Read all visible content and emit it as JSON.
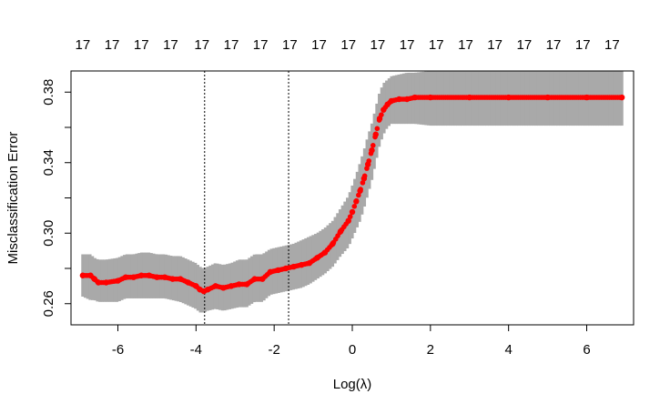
{
  "chart_data": {
    "type": "scatter",
    "xlabel": "Log(λ)",
    "ylabel": "Misclassification Error",
    "xlim": [
      -7.2,
      7.2
    ],
    "ylim": [
      0.248,
      0.392
    ],
    "x_ticks": [
      -6,
      -4,
      -2,
      0,
      2,
      4,
      6
    ],
    "x_tick_labels": [
      "-6",
      "-4",
      "-2",
      "0",
      "2",
      "4",
      "6"
    ],
    "y_ticks": [
      0.26,
      0.28,
      0.3,
      0.32,
      0.34,
      0.36,
      0.38
    ],
    "y_tick_labels": [
      "0.26",
      "",
      "0.30",
      "",
      "0.34",
      "",
      "0.38"
    ],
    "top_axis": {
      "label_positions": [
        -6.9,
        -6.15,
        -5.4,
        -4.65,
        -3.85,
        -3.1,
        -2.35,
        -1.6,
        -0.85,
        -0.1,
        0.65,
        1.4,
        2.15,
        2.9,
        3.65,
        4.4,
        5.15,
        5.9,
        6.65
      ],
      "labels": [
        "17",
        "17",
        "17",
        "17",
        "17",
        "17",
        "17",
        "17",
        "17",
        "17",
        "17",
        "17",
        "17",
        "17",
        "17",
        "17",
        "17",
        "17",
        "17"
      ]
    },
    "vlines": [
      -3.78,
      -1.63
    ],
    "grid": false,
    "series": [
      {
        "color": "#ff0000",
        "band_color": "#a9a9a9",
        "x": [
          -6.9,
          -6.7,
          -6.6,
          -6.5,
          -6.3,
          -6.0,
          -5.8,
          -5.6,
          -5.4,
          -5.2,
          -5.0,
          -4.8,
          -4.6,
          -4.4,
          -4.2,
          -4.0,
          -3.9,
          -3.8,
          -3.7,
          -3.5,
          -3.3,
          -3.1,
          -2.9,
          -2.7,
          -2.5,
          -2.3,
          -2.1,
          -1.9,
          -1.7,
          -1.5,
          -1.3,
          -1.1,
          -0.9,
          -0.7,
          -0.5,
          -0.3,
          -0.1,
          0.0,
          0.1,
          0.2,
          0.3,
          0.4,
          0.5,
          0.6,
          0.7,
          0.8,
          0.9,
          1.0,
          1.2,
          1.4,
          1.6,
          2.0,
          3.0,
          4.0,
          5.0,
          6.0,
          6.9
        ],
        "y": [
          0.276,
          0.276,
          0.274,
          0.272,
          0.272,
          0.273,
          0.275,
          0.275,
          0.276,
          0.276,
          0.275,
          0.275,
          0.274,
          0.274,
          0.272,
          0.27,
          0.268,
          0.267,
          0.268,
          0.27,
          0.269,
          0.27,
          0.271,
          0.271,
          0.274,
          0.274,
          0.278,
          0.279,
          0.28,
          0.281,
          0.282,
          0.283,
          0.286,
          0.289,
          0.294,
          0.301,
          0.307,
          0.312,
          0.318,
          0.324,
          0.331,
          0.339,
          0.347,
          0.356,
          0.365,
          0.37,
          0.373,
          0.375,
          0.376,
          0.376,
          0.377,
          0.377,
          0.377,
          0.377,
          0.377,
          0.377,
          0.377
        ],
        "lower": [
          0.264,
          0.262,
          0.262,
          0.261,
          0.261,
          0.261,
          0.263,
          0.263,
          0.263,
          0.263,
          0.263,
          0.263,
          0.262,
          0.261,
          0.259,
          0.257,
          0.255,
          0.255,
          0.256,
          0.257,
          0.256,
          0.257,
          0.258,
          0.258,
          0.261,
          0.261,
          0.265,
          0.266,
          0.267,
          0.268,
          0.269,
          0.271,
          0.274,
          0.277,
          0.281,
          0.287,
          0.292,
          0.297,
          0.302,
          0.307,
          0.314,
          0.322,
          0.33,
          0.34,
          0.35,
          0.356,
          0.36,
          0.362,
          0.362,
          0.362,
          0.362,
          0.361,
          0.361,
          0.361,
          0.361,
          0.361,
          0.361
        ],
        "upper": [
          0.288,
          0.288,
          0.286,
          0.285,
          0.285,
          0.286,
          0.288,
          0.288,
          0.289,
          0.289,
          0.288,
          0.288,
          0.287,
          0.287,
          0.285,
          0.283,
          0.281,
          0.28,
          0.281,
          0.283,
          0.282,
          0.283,
          0.285,
          0.285,
          0.288,
          0.288,
          0.291,
          0.292,
          0.293,
          0.294,
          0.296,
          0.298,
          0.3,
          0.303,
          0.307,
          0.314,
          0.321,
          0.327,
          0.333,
          0.34,
          0.347,
          0.355,
          0.362,
          0.371,
          0.38,
          0.385,
          0.387,
          0.389,
          0.39,
          0.391,
          0.391,
          0.392,
          0.392,
          0.392,
          0.392,
          0.392,
          0.392
        ]
      }
    ]
  }
}
